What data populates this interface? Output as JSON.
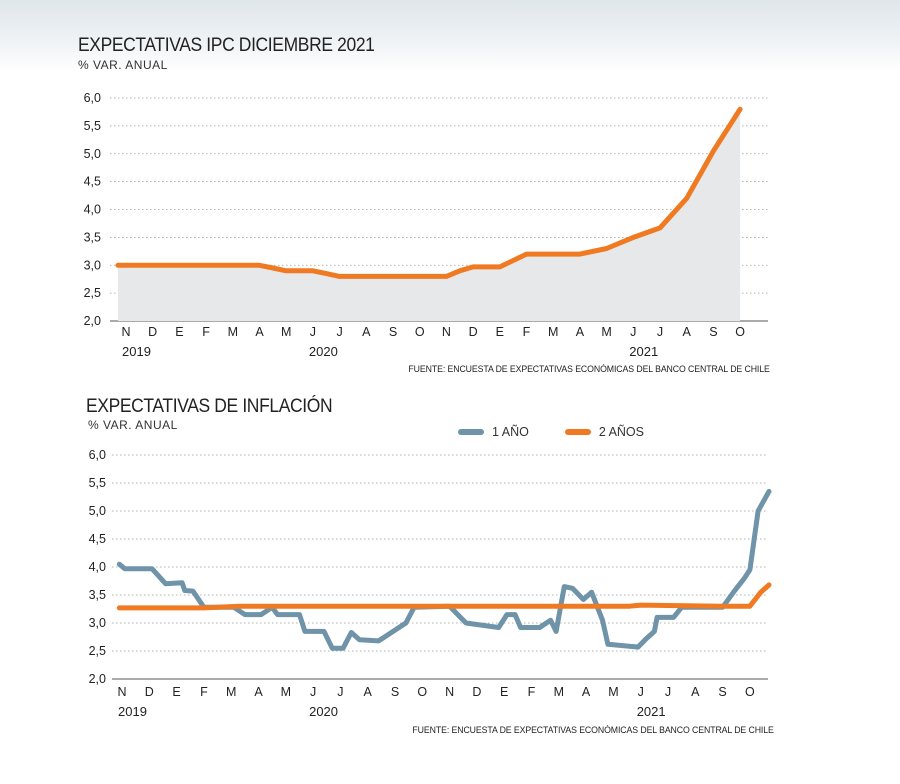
{
  "charts": [
    {
      "title": "EXPECTATIVAS IPC DICIEMBRE 2021",
      "subtitle": "% VAR. ANUAL",
      "source": "FUENTE: ENCUESTA DE EXPECTATIVAS ECONÓMICAS DEL BANCO CENTRAL DE CHILE"
    },
    {
      "title": "EXPECTATIVAS DE INFLACIÓN",
      "subtitle": "% VAR. ANUAL",
      "source": "FUENTE: ENCUESTA DE EXPECTATIVAS ECONÓMICAS DEL BANCO CENTRAL DE CHILE",
      "legend": [
        "1 AÑO",
        "2 AÑOS"
      ]
    }
  ],
  "colors": {
    "orange": "#f07a22",
    "blue": "#6f93a8",
    "area": "#e6e8ea",
    "grid": "#9a9a9a"
  },
  "chart_data": [
    {
      "type": "area",
      "title": "EXPECTATIVAS IPC DICIEMBRE 2021",
      "ylabel": "% VAR. ANUAL",
      "ylim": [
        2.0,
        6.0
      ],
      "yticks": [
        "6,0",
        "5,5",
        "5,0",
        "4,5",
        "4,0",
        "3,5",
        "3,0",
        "2,5",
        "2,0"
      ],
      "yticks_values": [
        6.0,
        5.5,
        5.0,
        4.5,
        4.0,
        3.5,
        3.0,
        2.5,
        2.0
      ],
      "categories": [
        "N",
        "D",
        "E",
        "F",
        "M",
        "A",
        "M",
        "J",
        "J",
        "A",
        "S",
        "O",
        "N",
        "D",
        "E",
        "F",
        "M",
        "A",
        "M",
        "J",
        "J",
        "A",
        "S",
        "O"
      ],
      "years": [
        {
          "label": "2019",
          "index": 0
        },
        {
          "label": "2020",
          "index": 7
        },
        {
          "label": "2021",
          "index": 19
        }
      ],
      "grid": "horizontal dotted",
      "series": [
        {
          "color": "orange",
          "points": [
            [
              -0.3,
              3.0
            ],
            [
              0,
              3.0
            ],
            [
              1,
              3.0
            ],
            [
              2,
              3.0
            ],
            [
              3,
              3.0
            ],
            [
              4,
              3.0
            ],
            [
              5,
              3.0
            ],
            [
              5.5,
              2.95
            ],
            [
              6,
              2.9
            ],
            [
              7,
              2.9
            ],
            [
              7.5,
              2.85
            ],
            [
              8,
              2.8
            ],
            [
              9,
              2.8
            ],
            [
              10,
              2.8
            ],
            [
              11,
              2.8
            ],
            [
              12,
              2.8
            ],
            [
              12.5,
              2.9
            ],
            [
              13,
              2.97
            ],
            [
              14,
              2.97
            ],
            [
              15,
              3.2
            ],
            [
              16,
              3.2
            ],
            [
              17,
              3.2
            ],
            [
              18,
              3.3
            ],
            [
              19,
              3.5
            ],
            [
              20,
              3.67
            ],
            [
              21,
              4.2
            ],
            [
              22,
              5.05
            ],
            [
              23,
              5.8
            ]
          ]
        }
      ]
    },
    {
      "type": "line",
      "title": "EXPECTATIVAS DE INFLACIÓN",
      "ylabel": "% VAR. ANUAL",
      "ylim": [
        2.0,
        6.0
      ],
      "yticks": [
        "6,0",
        "5,5",
        "5,0",
        "4,5",
        "4,0",
        "3,5",
        "3,0",
        "2,5",
        "2,0"
      ],
      "yticks_values": [
        6.0,
        5.5,
        5.0,
        4.5,
        4.0,
        3.5,
        3.0,
        2.5,
        2.0
      ],
      "categories": [
        "N",
        "D",
        "E",
        "F",
        "M",
        "A",
        "M",
        "J",
        "J",
        "A",
        "S",
        "O",
        "N",
        "D",
        "E",
        "F",
        "M",
        "A",
        "M",
        "J",
        "J",
        "A",
        "S",
        "O"
      ],
      "years": [
        {
          "label": "2019",
          "index": 0
        },
        {
          "label": "2020",
          "index": 7
        },
        {
          "label": "2021",
          "index": 19
        }
      ],
      "grid": "horizontal dotted",
      "legend_position": "top-right",
      "series": [
        {
          "name": "1 AÑO",
          "color": "blue",
          "points": [
            [
              -0.1,
              4.05
            ],
            [
              0.1,
              3.97
            ],
            [
              1.1,
              3.97
            ],
            [
              1.6,
              3.7
            ],
            [
              2.2,
              3.72
            ],
            [
              2.3,
              3.58
            ],
            [
              2.6,
              3.57
            ],
            [
              3.0,
              3.28
            ],
            [
              4.1,
              3.28
            ],
            [
              4.5,
              3.15
            ],
            [
              5.1,
              3.15
            ],
            [
              5.5,
              3.28
            ],
            [
              5.7,
              3.15
            ],
            [
              6.5,
              3.15
            ],
            [
              6.7,
              2.85
            ],
            [
              7.4,
              2.85
            ],
            [
              7.7,
              2.55
            ],
            [
              8.1,
              2.55
            ],
            [
              8.4,
              2.83
            ],
            [
              8.7,
              2.7
            ],
            [
              9.4,
              2.68
            ],
            [
              10.4,
              3.0
            ],
            [
              10.7,
              3.28
            ],
            [
              12.0,
              3.3
            ],
            [
              12.6,
              3.0
            ],
            [
              13.8,
              2.92
            ],
            [
              14.1,
              3.15
            ],
            [
              14.4,
              3.15
            ],
            [
              14.6,
              2.92
            ],
            [
              15.3,
              2.92
            ],
            [
              15.7,
              3.05
            ],
            [
              15.9,
              2.85
            ],
            [
              16.2,
              3.65
            ],
            [
              16.5,
              3.62
            ],
            [
              16.9,
              3.42
            ],
            [
              17.2,
              3.55
            ],
            [
              17.6,
              3.05
            ],
            [
              17.8,
              2.62
            ],
            [
              18.9,
              2.57
            ],
            [
              19.2,
              2.72
            ],
            [
              19.5,
              2.85
            ],
            [
              19.6,
              3.1
            ],
            [
              20.2,
              3.1
            ],
            [
              20.5,
              3.28
            ],
            [
              22.0,
              3.28
            ],
            [
              22.4,
              3.55
            ],
            [
              22.8,
              3.8
            ],
            [
              23.0,
              3.95
            ],
            [
              23.3,
              5.0
            ],
            [
              23.7,
              5.35
            ]
          ]
        },
        {
          "name": "2 AÑOS",
          "color": "orange",
          "points": [
            [
              -0.1,
              3.27
            ],
            [
              3.0,
              3.27
            ],
            [
              4.3,
              3.3
            ],
            [
              12.0,
              3.3
            ],
            [
              18.6,
              3.3
            ],
            [
              19.0,
              3.32
            ],
            [
              22.0,
              3.3
            ],
            [
              23.0,
              3.3
            ],
            [
              23.4,
              3.55
            ],
            [
              23.7,
              3.68
            ]
          ]
        }
      ]
    }
  ]
}
